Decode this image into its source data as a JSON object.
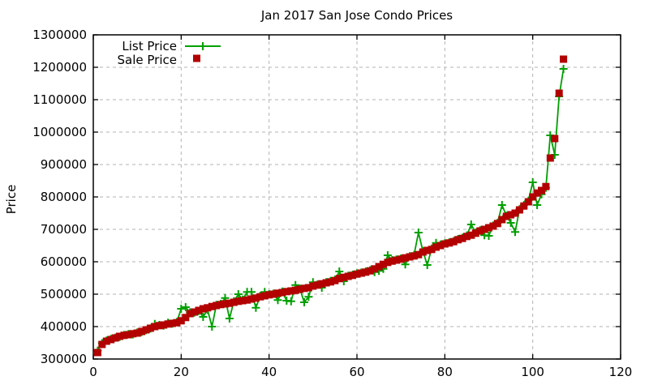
{
  "chart_data": {
    "type": "line",
    "title": "Jan 2017 San Jose Condo Prices",
    "xlabel": "",
    "ylabel": "Price",
    "xlim": [
      0,
      120
    ],
    "ylim": [
      300000,
      1300000
    ],
    "xticks": [
      0,
      20,
      40,
      60,
      80,
      100,
      120
    ],
    "yticks": [
      300000,
      400000,
      500000,
      600000,
      700000,
      800000,
      900000,
      1000000,
      1100000,
      1200000,
      1300000
    ],
    "grid": true,
    "grid_color": "#b3b3b3",
    "border_color": "#000000",
    "background": "#ffffff",
    "legend_position": "top-left-inside",
    "x": [
      1,
      2,
      3,
      4,
      5,
      6,
      7,
      8,
      9,
      10,
      11,
      12,
      13,
      14,
      15,
      16,
      17,
      18,
      19,
      20,
      21,
      22,
      23,
      24,
      25,
      26,
      27,
      28,
      29,
      30,
      31,
      32,
      33,
      34,
      35,
      36,
      37,
      38,
      39,
      40,
      41,
      42,
      43,
      44,
      45,
      46,
      47,
      48,
      49,
      50,
      51,
      52,
      53,
      54,
      55,
      56,
      57,
      58,
      59,
      60,
      61,
      62,
      63,
      64,
      65,
      66,
      67,
      68,
      69,
      70,
      71,
      72,
      73,
      74,
      75,
      76,
      77,
      78,
      79,
      80,
      81,
      82,
      83,
      84,
      85,
      86,
      87,
      88,
      89,
      90,
      91,
      92,
      93,
      94,
      95,
      96,
      97,
      98,
      99,
      100,
      101,
      102,
      103,
      104,
      105,
      106,
      107
    ],
    "series": [
      {
        "name": "List Price",
        "color": "#00a000",
        "marker": "plus",
        "style": "line-with-markers",
        "values": [
          326000,
          349000,
          357000,
          362000,
          366000,
          368000,
          374000,
          377000,
          376000,
          382000,
          383000,
          389000,
          394000,
          408000,
          405000,
          403000,
          412000,
          409000,
          414000,
          455000,
          460000,
          444000,
          443000,
          448000,
          430000,
          452000,
          400000,
          467000,
          470000,
          488000,
          425000,
          478000,
          500000,
          483000,
          507000,
          507000,
          458000,
          495000,
          507000,
          500000,
          502000,
          482000,
          508000,
          480000,
          478000,
          528000,
          517000,
          475000,
          492000,
          537000,
          530000,
          520000,
          537000,
          541000,
          545000,
          570000,
          540000,
          557000,
          560000,
          564000,
          567000,
          570000,
          574000,
          568000,
          572000,
          578000,
          620000,
          605000,
          607000,
          610000,
          592000,
          617000,
          621000,
          690000,
          633000,
          590000,
          641000,
          658000,
          653000,
          657000,
          660000,
          664000,
          670000,
          674000,
          681000,
          715000,
          690000,
          697000,
          682000,
          680000,
          712000,
          720000,
          775000,
          742000,
          720000,
          692000,
          762000,
          775000,
          788000,
          845000,
          775000,
          808000,
          828000,
          990000,
          930000,
          1110000,
          1195000
        ]
      },
      {
        "name": "Sale Price",
        "color": "#b30000",
        "marker": "square",
        "style": "markers-only",
        "values": [
          320000,
          345000,
          355000,
          360000,
          365000,
          370000,
          373000,
          375000,
          378000,
          380000,
          385000,
          390000,
          395000,
          400000,
          403000,
          405000,
          408000,
          410000,
          412000,
          418000,
          428000,
          440000,
          445000,
          450000,
          455000,
          458000,
          462000,
          465000,
          468000,
          470000,
          472000,
          475000,
          478000,
          480000,
          482000,
          485000,
          488000,
          492000,
          495000,
          498000,
          500000,
          503000,
          505000,
          508000,
          510000,
          512000,
          515000,
          518000,
          520000,
          525000,
          528000,
          532000,
          535000,
          538000,
          542000,
          548000,
          552000,
          555000,
          558000,
          562000,
          565000,
          568000,
          572000,
          578000,
          585000,
          592000,
          598000,
          602000,
          605000,
          608000,
          612000,
          615000,
          618000,
          622000,
          630000,
          635000,
          638000,
          645000,
          650000,
          655000,
          658000,
          662000,
          668000,
          672000,
          678000,
          682000,
          688000,
          695000,
          700000,
          705000,
          710000,
          718000,
          730000,
          740000,
          745000,
          750000,
          760000,
          772000,
          785000,
          800000,
          812000,
          820000,
          832000,
          920000,
          980000,
          1120000,
          1225000
        ]
      }
    ]
  }
}
